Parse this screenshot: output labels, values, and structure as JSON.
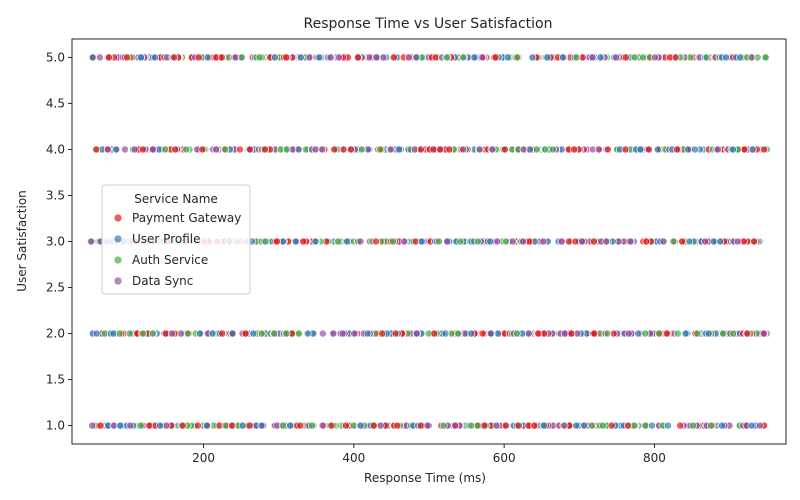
{
  "chart_data": {
    "type": "scatter",
    "title": "Response Time vs User Satisfaction",
    "xlabel": "Response Time (ms)",
    "ylabel": "User Satisfaction",
    "xlim": [
      25,
      975
    ],
    "ylim": [
      0.8,
      5.2
    ],
    "xticks": [
      200,
      400,
      600,
      800
    ],
    "xtick_labels": [
      "200",
      "400",
      "600",
      "800"
    ],
    "yticks": [
      1.0,
      1.5,
      2.0,
      2.5,
      3.0,
      3.5,
      4.0,
      4.5,
      5.0
    ],
    "ytick_labels": [
      "1.0",
      "1.5",
      "2.0",
      "2.5",
      "3.0",
      "3.5",
      "4.0",
      "4.5",
      "5.0"
    ],
    "grid": false,
    "legend": {
      "title": "Service Name",
      "placement": "center-left"
    },
    "x_range": [
      50,
      950
    ],
    "satisfaction_levels": [
      1,
      2,
      3,
      4,
      5
    ],
    "series": [
      {
        "name": "Payment Gateway",
        "color": "#e41a1c"
      },
      {
        "name": "User Profile",
        "color": "#377eb8"
      },
      {
        "name": "Auth Service",
        "color": "#4daf4a"
      },
      {
        "name": "Data Sync",
        "color": "#984ea3"
      }
    ]
  }
}
